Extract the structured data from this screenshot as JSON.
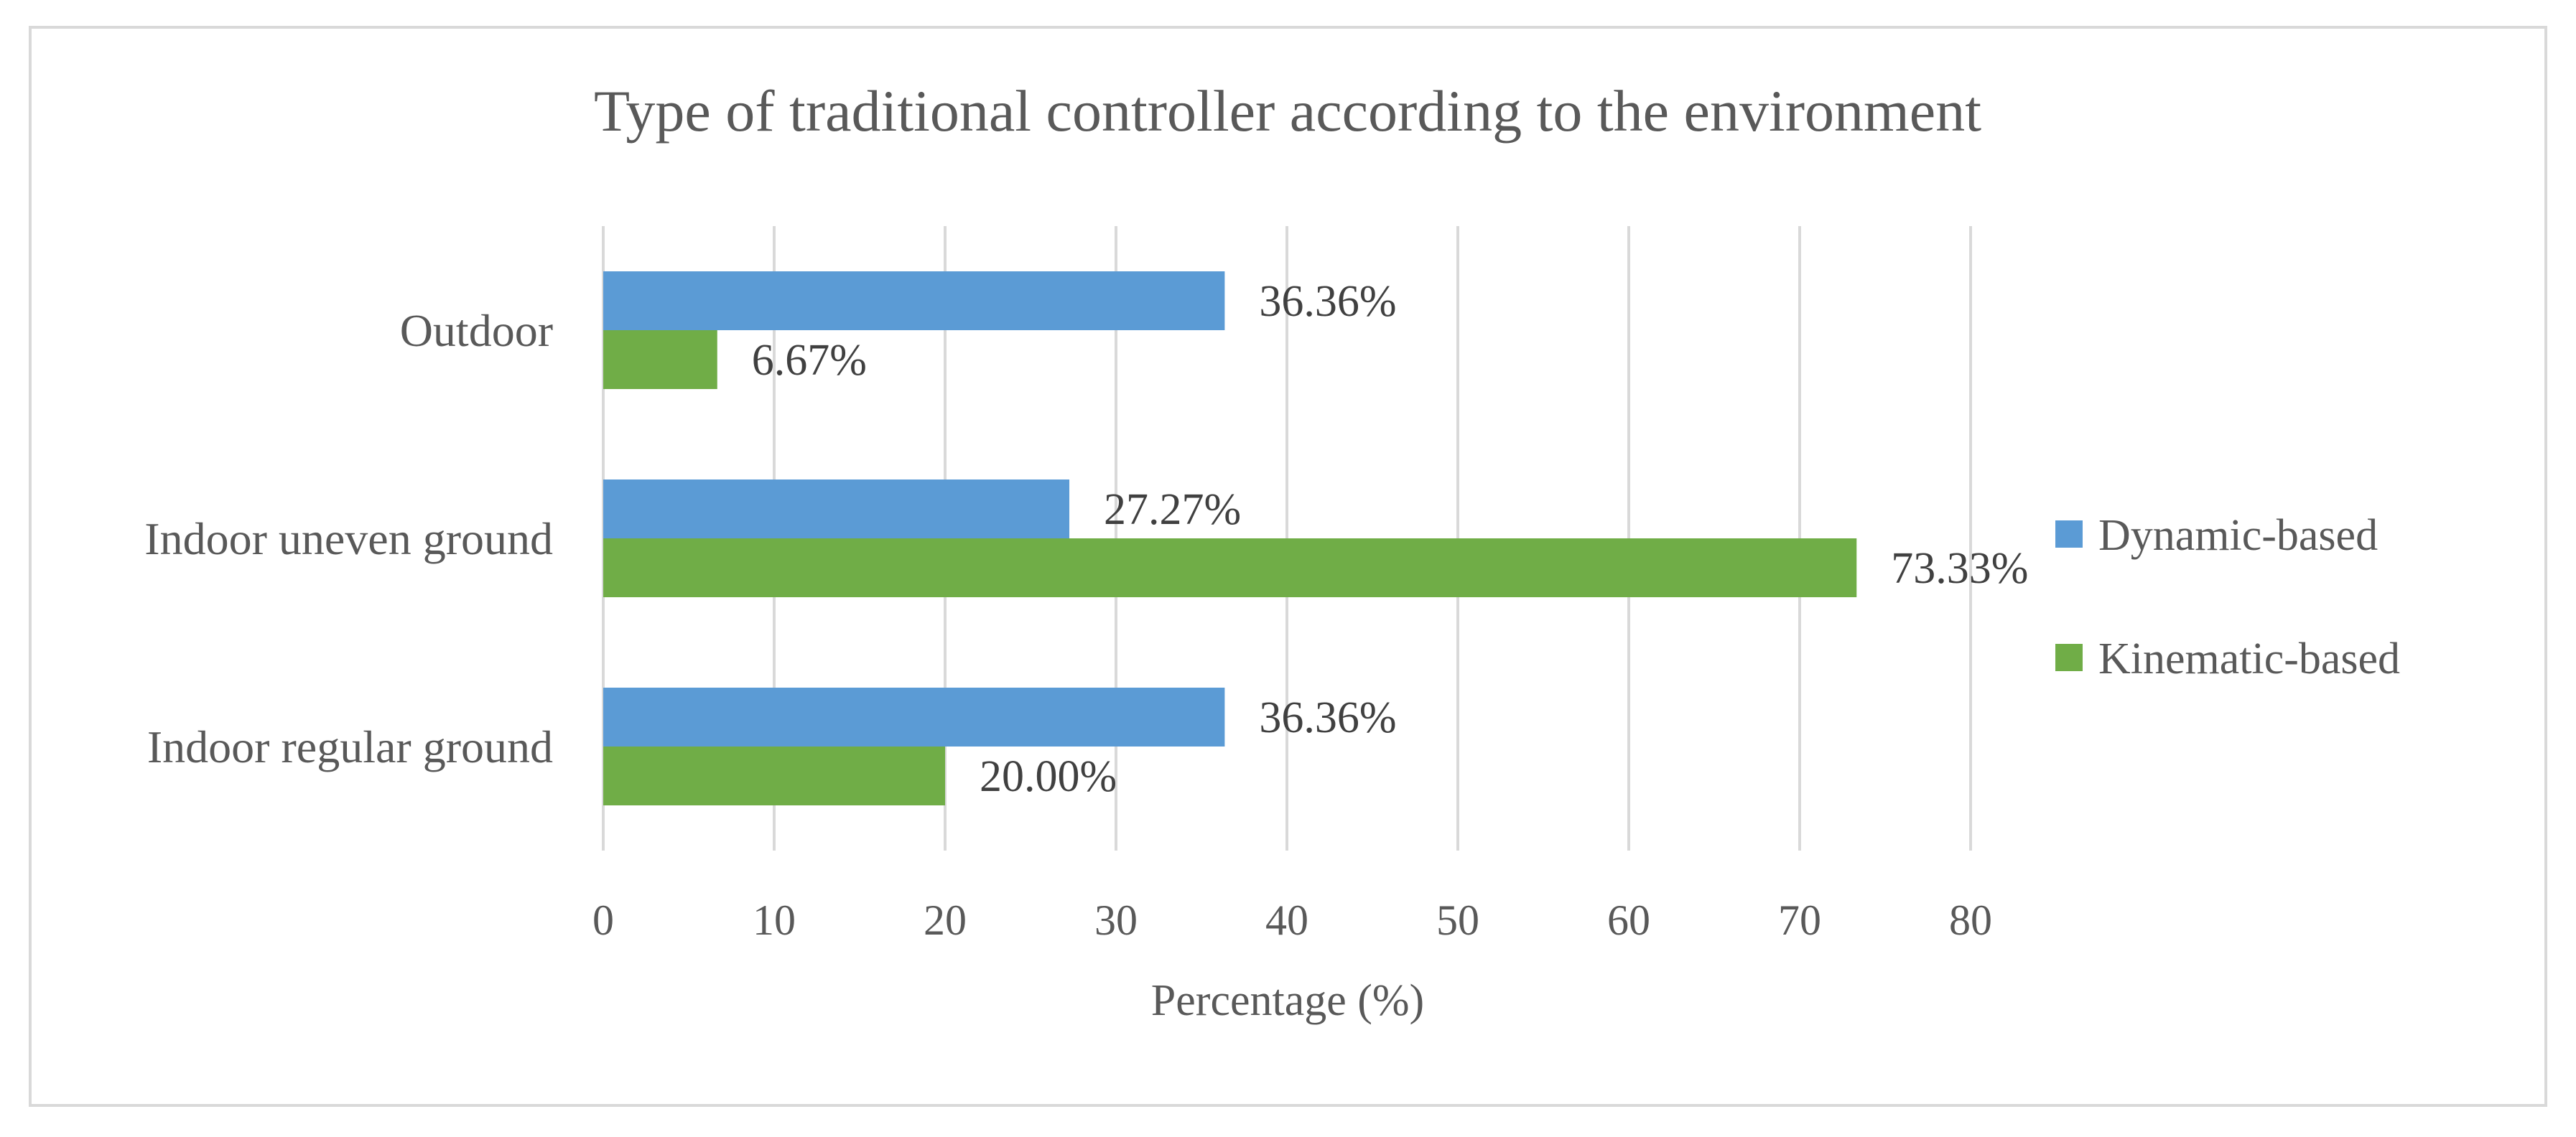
{
  "chart_data": {
    "type": "bar",
    "orientation": "horizontal",
    "title": "Type of traditional controller according to the environment",
    "xlabel": "Percentage (%)",
    "ylabel": "",
    "xlim": [
      0,
      80
    ],
    "x_ticks": [
      0,
      10,
      20,
      30,
      40,
      50,
      60,
      70,
      80
    ],
    "x_tick_labels": [
      "0",
      "10",
      "20",
      "30",
      "40",
      "50",
      "60",
      "70",
      "80"
    ],
    "categories": [
      "Outdoor",
      "Indoor uneven ground",
      "Indoor regular ground"
    ],
    "series": [
      {
        "name": "Dynamic-based",
        "color": "#5b9bd5",
        "values": [
          36.36,
          27.27,
          36.36
        ],
        "labels": [
          "36.36%",
          "27.27%",
          "36.36%"
        ]
      },
      {
        "name": "Kinematic-based",
        "color": "#70ad47",
        "values": [
          6.67,
          73.33,
          20.0
        ],
        "labels": [
          "6.67%",
          "73.33%",
          "20.00%"
        ]
      }
    ],
    "grid": "vertical gridlines",
    "legend_position": "right"
  },
  "colors": {
    "text": "#595959",
    "label_text": "#404040",
    "gridline": "#d9d9d9",
    "frame_border": "#d9d9d9"
  }
}
